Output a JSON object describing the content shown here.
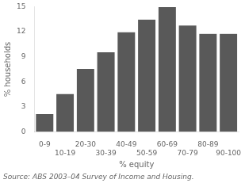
{
  "chart_data": {
    "type": "bar",
    "categories": [
      "0-9",
      "10-19",
      "20-30",
      "30-39",
      "40-49",
      "50-59",
      "60-69",
      "70-79",
      "80-89",
      "90-100"
    ],
    "values": [
      2.2,
      4.6,
      7.6,
      9.6,
      12.0,
      13.5,
      15.0,
      12.8,
      11.8,
      11.8
    ],
    "color": "#595959",
    "xlabel": "% equity",
    "ylabel": "% households",
    "ylim": [
      0,
      15
    ],
    "yticks": [
      0,
      3,
      6,
      9,
      12,
      15
    ],
    "grid": false,
    "annotations": [
      "Source: ABS 2003–04 Survey of Income and Housing."
    ]
  }
}
